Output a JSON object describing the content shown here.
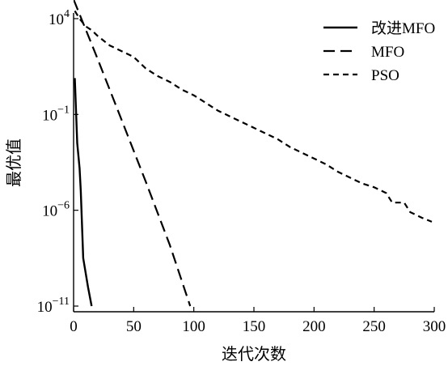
{
  "chart_data": {
    "type": "line",
    "title": "",
    "xlabel": "迭代次数",
    "ylabel": "最优值",
    "xlim": [
      0,
      300
    ],
    "ylim_exponent": [
      -11,
      4
    ],
    "yscale": "log",
    "grid": false,
    "legend_placement": "top-right",
    "x_ticks": [
      {
        "value": 0,
        "label": "0"
      },
      {
        "value": 50,
        "label": "50"
      },
      {
        "value": 100,
        "label": "100"
      },
      {
        "value": 150,
        "label": "150"
      },
      {
        "value": 200,
        "label": "200"
      },
      {
        "value": 250,
        "label": "250"
      },
      {
        "value": 300,
        "label": "300"
      }
    ],
    "y_ticks": [
      {
        "exponent": 4,
        "base": "10",
        "power": "4"
      },
      {
        "exponent": -1,
        "base": "10",
        "power": "−1"
      },
      {
        "exponent": -6,
        "base": "10",
        "power": "−6"
      },
      {
        "exponent": -11,
        "base": "10",
        "power": "−11"
      }
    ],
    "series": [
      {
        "name": "改进MFO",
        "style": "solid",
        "log10_y_points": [
          [
            1,
            0.9
          ],
          [
            3,
            -2.5
          ],
          [
            5,
            -3.8
          ],
          [
            6,
            -5.0
          ],
          [
            8,
            -8.5
          ],
          [
            12,
            -10.0
          ],
          [
            15,
            -11.0
          ]
        ]
      },
      {
        "name": "MFO",
        "style": "dashed",
        "log10_y_points": [
          [
            0,
            5.0
          ],
          [
            20,
            1.9
          ],
          [
            40,
            -1.3
          ],
          [
            60,
            -4.5
          ],
          [
            80,
            -7.8
          ],
          [
            97,
            -11.0
          ]
        ]
      },
      {
        "name": "PSO",
        "style": "dashed-short",
        "log10_y_points": [
          [
            1,
            4.4
          ],
          [
            5,
            4.0
          ],
          [
            10,
            3.6
          ],
          [
            15,
            3.4
          ],
          [
            20,
            3.1
          ],
          [
            30,
            2.6
          ],
          [
            40,
            2.3
          ],
          [
            50,
            2.0
          ],
          [
            60,
            1.4
          ],
          [
            70,
            1.0
          ],
          [
            80,
            0.7
          ],
          [
            90,
            0.3
          ],
          [
            100,
            0.0
          ],
          [
            110,
            -0.4
          ],
          [
            120,
            -0.8
          ],
          [
            130,
            -1.1
          ],
          [
            140,
            -1.4
          ],
          [
            150,
            -1.7
          ],
          [
            160,
            -2.0
          ],
          [
            170,
            -2.3
          ],
          [
            180,
            -2.7
          ],
          [
            190,
            -3.0
          ],
          [
            200,
            -3.3
          ],
          [
            210,
            -3.6
          ],
          [
            220,
            -4.0
          ],
          [
            230,
            -4.3
          ],
          [
            240,
            -4.6
          ],
          [
            250,
            -4.8
          ],
          [
            260,
            -5.1
          ],
          [
            265,
            -5.6
          ],
          [
            270,
            -5.6
          ],
          [
            275,
            -5.6
          ],
          [
            280,
            -6.1
          ],
          [
            290,
            -6.4
          ],
          [
            298,
            -6.6
          ]
        ]
      }
    ]
  }
}
